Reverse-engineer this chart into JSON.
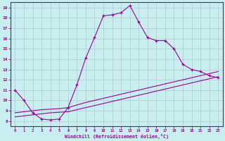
{
  "xlabel": "Windchill (Refroidissement éolien,°C)",
  "background_color": "#c8eef0",
  "grid_color": "#b0c8cc",
  "line_color": "#990099",
  "xlim": [
    -0.5,
    23.5
  ],
  "ylim": [
    7.5,
    19.5
  ],
  "yticks": [
    8,
    9,
    10,
    11,
    12,
    13,
    14,
    15,
    16,
    17,
    18,
    19
  ],
  "xticks": [
    0,
    1,
    2,
    3,
    4,
    5,
    6,
    7,
    8,
    9,
    10,
    11,
    12,
    13,
    14,
    15,
    16,
    17,
    18,
    19,
    20,
    21,
    22,
    23
  ],
  "line1_x": [
    0,
    1,
    2,
    3,
    4,
    5,
    6,
    7,
    8,
    9,
    10,
    11,
    12,
    13,
    14,
    15,
    16,
    17,
    18,
    19,
    20,
    21,
    22,
    23
  ],
  "line1_y": [
    11.0,
    10.0,
    8.8,
    8.2,
    8.1,
    8.2,
    9.3,
    11.5,
    14.1,
    16.1,
    18.2,
    18.3,
    18.5,
    19.2,
    17.6,
    16.1,
    15.8,
    15.8,
    15.0,
    13.5,
    13.0,
    12.8,
    12.4,
    12.2
  ],
  "line2_x": [
    0,
    1,
    2,
    3,
    4,
    5,
    6,
    7,
    8,
    9,
    10,
    11,
    12,
    13,
    14,
    15,
    16,
    17,
    18,
    19,
    20,
    21,
    22,
    23
  ],
  "line2_y": [
    8.4,
    8.5,
    8.6,
    8.7,
    8.8,
    8.85,
    8.9,
    9.1,
    9.3,
    9.5,
    9.7,
    9.9,
    10.1,
    10.3,
    10.5,
    10.7,
    10.9,
    11.1,
    11.3,
    11.5,
    11.7,
    11.9,
    12.1,
    12.3
  ],
  "line3_x": [
    0,
    1,
    2,
    3,
    4,
    5,
    6,
    7,
    8,
    9,
    10,
    11,
    12,
    13,
    14,
    15,
    16,
    17,
    18,
    19,
    20,
    21,
    22,
    23
  ],
  "line3_y": [
    8.8,
    8.9,
    9.0,
    9.1,
    9.15,
    9.2,
    9.3,
    9.55,
    9.8,
    10.0,
    10.2,
    10.4,
    10.6,
    10.8,
    11.0,
    11.2,
    11.4,
    11.6,
    11.8,
    12.0,
    12.2,
    12.4,
    12.6,
    12.8
  ]
}
